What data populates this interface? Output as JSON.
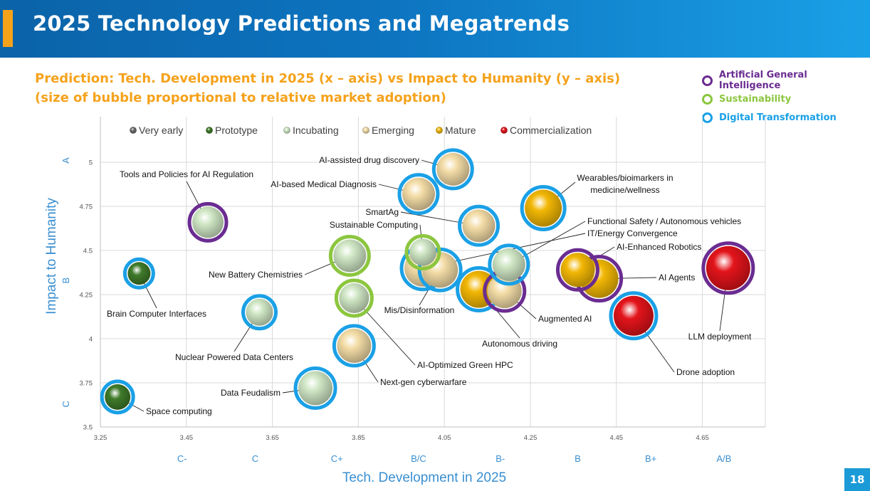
{
  "header": {
    "title": "2025 Technology Predictions and Megatrends"
  },
  "subtitle": {
    "line1": "Prediction: Tech. Development in 2025 (x – axis) vs Impact to Humanity (y – axis)",
    "line2": "(size of bubble proportional to relative market adoption)"
  },
  "megatrend_legend": [
    {
      "label": "Artificial General Intelligence",
      "color": "#6a2c91"
    },
    {
      "label": "Sustainability",
      "color": "#8cc63f"
    },
    {
      "label": "Digital Transformation",
      "color": "#1aa0e6"
    }
  ],
  "page_number": "18",
  "chart_data": {
    "type": "scatter",
    "xlabel": "Tech. Development in 2025",
    "ylabel": "Impact to Humanity",
    "xlim": [
      3.25,
      4.8
    ],
    "ylim": [
      3.5,
      5.15
    ],
    "x_ticks": [
      "3.25",
      "3.45",
      "3.65",
      "3.85",
      "4.05",
      "4.25",
      "4.45",
      "4.65"
    ],
    "y_ticks": [
      "3.5",
      "3.75",
      "4",
      "4.25",
      "4.5",
      "4.75",
      "5"
    ],
    "x_grades": [
      {
        "label": "C-",
        "x": 3.44
      },
      {
        "label": "C",
        "x": 3.61
      },
      {
        "label": "C+",
        "x": 3.8
      },
      {
        "label": "B/C",
        "x": 3.99
      },
      {
        "label": "B-",
        "x": 4.18
      },
      {
        "label": "B",
        "x": 4.36
      },
      {
        "label": "B+",
        "x": 4.53
      },
      {
        "label": "A/B",
        "x": 4.7
      }
    ],
    "y_grades": [
      {
        "label": "A",
        "y": 5.01
      },
      {
        "label": "B",
        "y": 4.33
      },
      {
        "label": "C",
        "y": 3.63
      }
    ],
    "grid": true,
    "maturity_legend": [
      {
        "label": "Very early",
        "color": "#6d6d6d"
      },
      {
        "label": "Prototype",
        "color": "#3f7a2a"
      },
      {
        "label": "Incubating",
        "color": "#cfe6c4"
      },
      {
        "label": "Emerging",
        "color": "#f3dca6"
      },
      {
        "label": "Mature",
        "color": "#f2b705"
      },
      {
        "label": "Commercialization",
        "color": "#e3141b"
      }
    ],
    "points": [
      {
        "name": "AI-assisted drug discovery",
        "x": 4.07,
        "y": 4.96,
        "size": 27,
        "stage": "Emerging",
        "trend": "Digital Transformation"
      },
      {
        "name": "AI-based Medical Diagnosis",
        "x": 3.99,
        "y": 4.82,
        "size": 27,
        "stage": "Emerging",
        "trend": "Digital Transformation"
      },
      {
        "name": "Tools and Policies for AI Regulation",
        "x": 3.5,
        "y": 4.66,
        "size": 26,
        "stage": "Incubating",
        "trend": "Artificial General Intelligence"
      },
      {
        "name": "Wearables/bioimarkers in medicine/wellness",
        "x": 4.28,
        "y": 4.74,
        "size": 30,
        "stage": "Mature",
        "trend": "Digital Transformation"
      },
      {
        "name": "SmartAg",
        "x": 4.13,
        "y": 4.64,
        "size": 27,
        "stage": "Emerging",
        "trend": "Digital Transformation"
      },
      {
        "name": "Sustainable Computing",
        "x": 4.0,
        "y": 4.49,
        "size": 23,
        "stage": "Incubating",
        "trend": "Sustainability"
      },
      {
        "name": "New Battery Chemistries",
        "x": 3.83,
        "y": 4.47,
        "size": 27,
        "stage": "Incubating",
        "trend": "Sustainability"
      },
      {
        "name": "Functional Safety / Autonomous vehicles",
        "x": 4.2,
        "y": 4.42,
        "size": 27,
        "stage": "Incubating",
        "trend": "Digital Transformation"
      },
      {
        "name": "IT/Energy Convergence",
        "x": 4.0,
        "y": 4.4,
        "size": 30,
        "stage": "Emerging",
        "trend": "Digital Transformation"
      },
      {
        "name": "Mis/Disinformation",
        "x": 4.04,
        "y": 4.39,
        "size": 29,
        "stage": "Emerging",
        "trend": "Digital Transformation"
      },
      {
        "name": "AI-Enhanced Robotics",
        "x": 4.36,
        "y": 4.39,
        "size": 28,
        "stage": "Mature",
        "trend": "Artificial General Intelligence"
      },
      {
        "name": "AI Agents",
        "x": 4.41,
        "y": 4.34,
        "size": 31,
        "stage": "Mature",
        "trend": "Artificial General Intelligence"
      },
      {
        "name": "LLM deployment",
        "x": 4.71,
        "y": 4.4,
        "size": 35,
        "stage": "Commercialization",
        "trend": "Artificial General Intelligence"
      },
      {
        "name": "Brain Computer Interfaces",
        "x": 3.34,
        "y": 4.37,
        "size": 20,
        "stage": "Prototype",
        "trend": "Digital Transformation"
      },
      {
        "name": "Augmented AI",
        "x": 4.19,
        "y": 4.27,
        "size": 28,
        "stage": "Emerging",
        "trend": "Artificial General Intelligence"
      },
      {
        "name": "Autonomous driving",
        "x": 4.13,
        "y": 4.28,
        "size": 30,
        "stage": "Mature",
        "trend": "Digital Transformation"
      },
      {
        "name": "AI-Optimized Green HPC",
        "x": 3.84,
        "y": 4.23,
        "size": 25,
        "stage": "Incubating",
        "trend": "Sustainability"
      },
      {
        "name": "Nuclear Powered Data Centers",
        "x": 3.62,
        "y": 4.15,
        "size": 23,
        "stage": "Incubating",
        "trend": "Digital Transformation"
      },
      {
        "name": "Drone adoption",
        "x": 4.49,
        "y": 4.13,
        "size": 32,
        "stage": "Commercialization",
        "trend": "Digital Transformation"
      },
      {
        "name": "Next-gen cyberwarfare",
        "x": 3.84,
        "y": 3.96,
        "size": 28,
        "stage": "Emerging",
        "trend": "Digital Transformation"
      },
      {
        "name": "Data Feudalism",
        "x": 3.75,
        "y": 3.72,
        "size": 28,
        "stage": "Incubating",
        "trend": "Digital Transformation"
      },
      {
        "name": "Space computing",
        "x": 3.29,
        "y": 3.67,
        "size": 22,
        "stage": "Prototype",
        "trend": "Digital Transformation"
      }
    ]
  }
}
